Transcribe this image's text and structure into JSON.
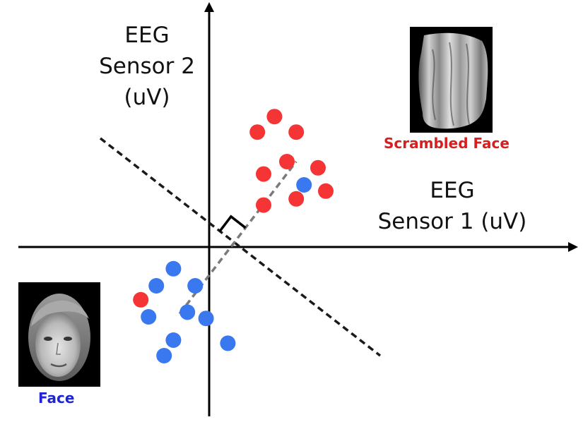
{
  "labels": {
    "y_axis": [
      "EEG",
      "Sensor 2",
      "(uV)"
    ],
    "x_axis": [
      "EEG",
      "Sensor 1 (uV)"
    ]
  },
  "legend": {
    "scrambled": {
      "label": "Scrambled Face",
      "color": "#d91e1e",
      "image": "scrambled-face-photo"
    },
    "face": {
      "label": "Face",
      "color": "#1f24d4",
      "image": "face-photo"
    }
  },
  "colors": {
    "red_point": "#f53535",
    "blue_point": "#3a78f0",
    "axis": "#000000",
    "decision_boundary": "#1a1a1a",
    "projection_line": "#7a7a7a"
  },
  "chart_data": {
    "type": "scatter",
    "xlabel": "EEG Sensor 1 (uV)",
    "ylabel": "EEG Sensor 2 (uV)",
    "xlim": [
      -10,
      18.5
    ],
    "ylim": [
      -8.5,
      12.4
    ],
    "grid": false,
    "series": [
      {
        "name": "Scrambled Face",
        "color": "#f53535",
        "points": [
          [
            4.2,
            8.4
          ],
          [
            3.1,
            7.4
          ],
          [
            5.6,
            7.4
          ],
          [
            5.0,
            5.5
          ],
          [
            3.5,
            4.7
          ],
          [
            7.0,
            5.1
          ],
          [
            7.5,
            3.6
          ],
          [
            5.6,
            3.1
          ],
          [
            3.5,
            2.7
          ],
          [
            -4.4,
            -3.4
          ]
        ]
      },
      {
        "name": "Face",
        "color": "#3a78f0",
        "points": [
          [
            6.1,
            4.0
          ],
          [
            -2.3,
            -1.4
          ],
          [
            -3.4,
            -2.5
          ],
          [
            -0.9,
            -2.5
          ],
          [
            -3.9,
            -4.5
          ],
          [
            -1.4,
            -4.2
          ],
          [
            -0.2,
            -4.6
          ],
          [
            -2.3,
            -6.0
          ],
          [
            1.2,
            -6.2
          ],
          [
            -2.9,
            -7.0
          ]
        ]
      }
    ],
    "decision_boundary": [
      [
        -7.0,
        7.0
      ],
      [
        11.0,
        -7.0
      ]
    ],
    "projection_line": [
      [
        -1.9,
        -4.3
      ],
      [
        5.6,
        5.5
      ]
    ],
    "right_angle_marker": true
  }
}
